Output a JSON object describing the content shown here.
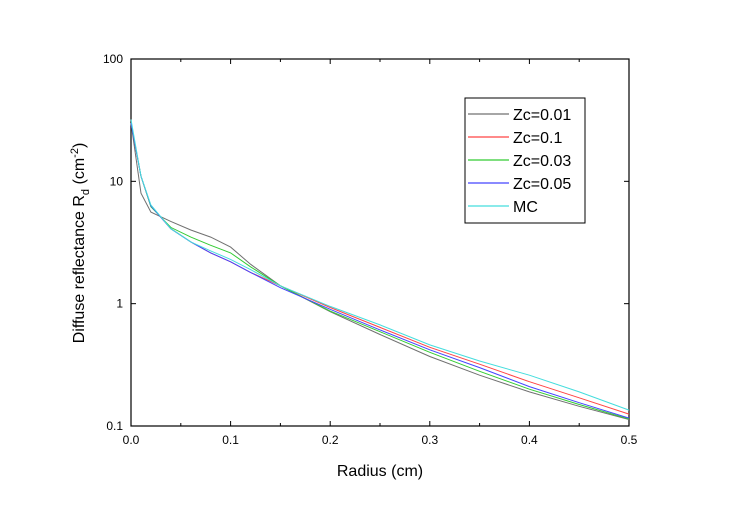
{
  "chart_data": {
    "type": "line",
    "title": "",
    "xlabel": "Radius (cm)",
    "ylabel": {
      "main": "Diffuse reflectance R",
      "sub": "d",
      "open": " (cm",
      "sup": "-2",
      "close": ")"
    },
    "x_scale": "linear",
    "y_scale": "log",
    "xlim": [
      0.0,
      0.5
    ],
    "ylim": [
      0.1,
      100
    ],
    "x_ticks": [
      {
        "value": 0.0,
        "label": "0.0"
      },
      {
        "value": 0.1,
        "label": "0.1"
      },
      {
        "value": 0.2,
        "label": "0.2"
      },
      {
        "value": 0.3,
        "label": "0.3"
      },
      {
        "value": 0.4,
        "label": "0.4"
      },
      {
        "value": 0.5,
        "label": "0.5"
      }
    ],
    "y_ticks": [
      {
        "value": 0.1,
        "label": "0.1"
      },
      {
        "value": 1,
        "label": "1"
      },
      {
        "value": 10,
        "label": "10"
      },
      {
        "value": 100,
        "label": "100"
      }
    ],
    "grid": false,
    "legend_position": "top-right",
    "series": [
      {
        "name": "Zc=0.01",
        "color": "#707070",
        "x": [
          0.0,
          0.01,
          0.02,
          0.04,
          0.06,
          0.08,
          0.1,
          0.12,
          0.15,
          0.2,
          0.25,
          0.3,
          0.35,
          0.4,
          0.45,
          0.5
        ],
        "y": [
          30,
          8.0,
          5.6,
          4.7,
          4.0,
          3.5,
          2.9,
          2.1,
          1.4,
          0.86,
          0.56,
          0.37,
          0.26,
          0.19,
          0.145,
          0.113
        ]
      },
      {
        "name": "Zc=0.1",
        "color": "#ff4444",
        "x": [
          0.0,
          0.01,
          0.02,
          0.04,
          0.06,
          0.08,
          0.1,
          0.12,
          0.15,
          0.2,
          0.25,
          0.3,
          0.35,
          0.4,
          0.45,
          0.5
        ],
        "y": [
          30,
          11,
          6.3,
          4.1,
          3.2,
          2.6,
          2.2,
          1.8,
          1.4,
          0.93,
          0.64,
          0.44,
          0.32,
          0.23,
          0.17,
          0.125
        ]
      },
      {
        "name": "Zc=0.03",
        "color": "#33cc33",
        "x": [
          0.0,
          0.01,
          0.02,
          0.04,
          0.06,
          0.08,
          0.1,
          0.12,
          0.15,
          0.2,
          0.25,
          0.3,
          0.35,
          0.4,
          0.45,
          0.5
        ],
        "y": [
          30,
          11,
          6.2,
          4.2,
          3.5,
          3.0,
          2.6,
          2.0,
          1.4,
          0.87,
          0.59,
          0.4,
          0.28,
          0.2,
          0.15,
          0.114
        ]
      },
      {
        "name": "Zc=0.05",
        "color": "#4444ff",
        "x": [
          0.0,
          0.01,
          0.02,
          0.04,
          0.06,
          0.08,
          0.1,
          0.12,
          0.15,
          0.2,
          0.25,
          0.3,
          0.35,
          0.4,
          0.45,
          0.5
        ],
        "y": [
          30,
          11,
          6.3,
          4.1,
          3.2,
          2.6,
          2.2,
          1.8,
          1.35,
          0.9,
          0.61,
          0.42,
          0.3,
          0.21,
          0.155,
          0.116
        ]
      },
      {
        "name": "MC",
        "color": "#44dddd",
        "x": [
          0.0,
          0.01,
          0.02,
          0.04,
          0.06,
          0.08,
          0.1,
          0.12,
          0.15,
          0.2,
          0.25,
          0.3,
          0.35,
          0.4,
          0.45,
          0.5
        ],
        "y": [
          32,
          11,
          6.4,
          4.1,
          3.2,
          2.7,
          2.3,
          1.9,
          1.4,
          0.95,
          0.67,
          0.46,
          0.34,
          0.26,
          0.19,
          0.135
        ]
      }
    ]
  }
}
